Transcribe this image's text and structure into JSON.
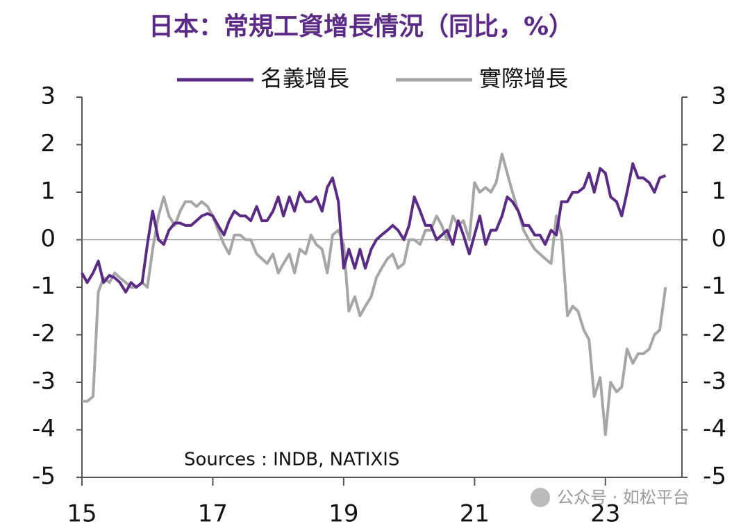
{
  "chart_data": {
    "type": "line",
    "title": "日本：常規工資增長情況（同比，%）",
    "annotation": "Sources : INDB, NATIXIS",
    "watermark": "公众号 · 如松平台",
    "legend": "top",
    "grid": false,
    "x": [
      15.0,
      15.08,
      15.17,
      15.25,
      15.33,
      15.42,
      15.5,
      15.58,
      15.67,
      15.75,
      15.83,
      15.92,
      16.0,
      16.08,
      16.17,
      16.25,
      16.33,
      16.42,
      16.5,
      16.58,
      16.67,
      16.75,
      16.83,
      16.92,
      17.0,
      17.08,
      17.17,
      17.25,
      17.33,
      17.42,
      17.5,
      17.58,
      17.67,
      17.75,
      17.83,
      17.92,
      18.0,
      18.08,
      18.17,
      18.25,
      18.33,
      18.42,
      18.5,
      18.58,
      18.67,
      18.75,
      18.83,
      18.92,
      19.0,
      19.08,
      19.17,
      19.25,
      19.33,
      19.42,
      19.5,
      19.58,
      19.67,
      19.75,
      19.83,
      19.92,
      20.0,
      20.08,
      20.17,
      20.25,
      20.33,
      20.42,
      20.5,
      20.58,
      20.67,
      20.75,
      20.83,
      20.92,
      21.0,
      21.08,
      21.17,
      21.25,
      21.33,
      21.42,
      21.5,
      21.58,
      21.67,
      21.75,
      21.83,
      21.92,
      22.0,
      22.08,
      22.17,
      22.25,
      22.33,
      22.42,
      22.5,
      22.58,
      22.67,
      22.75,
      22.83,
      22.92,
      23.0,
      23.08,
      23.17,
      23.25,
      23.33,
      23.42,
      23.5,
      23.58,
      23.67,
      23.75,
      23.83,
      23.92
    ],
    "series": [
      {
        "name": "名義增長",
        "color": "#5b2a86",
        "values": [
          -0.7,
          -0.9,
          -0.7,
          -0.45,
          -0.9,
          -0.75,
          -0.8,
          -0.9,
          -1.1,
          -0.9,
          -1.0,
          -0.9,
          -0.1,
          0.6,
          0.0,
          -0.1,
          0.2,
          0.35,
          0.35,
          0.3,
          0.3,
          0.4,
          0.5,
          0.55,
          0.5,
          0.3,
          0.1,
          0.4,
          0.6,
          0.5,
          0.5,
          0.4,
          0.7,
          0.4,
          0.4,
          0.6,
          0.9,
          0.5,
          0.9,
          0.6,
          1.0,
          0.8,
          0.8,
          0.9,
          0.6,
          1.1,
          1.3,
          0.8,
          -0.6,
          -0.2,
          -0.6,
          -0.2,
          -0.6,
          -0.2,
          0.0,
          0.1,
          0.2,
          0.3,
          0.2,
          0.0,
          0.3,
          0.9,
          0.6,
          0.3,
          0.3,
          0.0,
          0.1,
          0.2,
          -0.1,
          0.4,
          0.1,
          -0.3,
          0.1,
          0.5,
          -0.1,
          0.2,
          0.2,
          0.5,
          0.9,
          0.8,
          0.6,
          0.3,
          0.3,
          0.1,
          0.1,
          -0.1,
          0.2,
          0.1,
          0.8,
          0.8,
          1.0,
          1.0,
          1.1,
          1.4,
          1.0,
          1.5,
          1.4,
          0.9,
          0.8,
          0.5,
          1.0,
          1.6,
          1.3,
          1.3,
          1.2,
          1.0,
          1.3,
          1.35
        ]
      },
      {
        "name": "實際增長",
        "color": "#a6a6a6",
        "values": [
          -3.4,
          -3.4,
          -3.3,
          -1.1,
          -0.8,
          -0.9,
          -0.7,
          -0.8,
          -0.9,
          -1.0,
          -1.0,
          -0.9,
          -1.0,
          -0.2,
          0.5,
          0.9,
          0.5,
          0.3,
          0.6,
          0.8,
          0.8,
          0.7,
          0.8,
          0.7,
          0.5,
          0.2,
          -0.1,
          -0.3,
          0.1,
          0.1,
          0.0,
          0.0,
          -0.3,
          -0.4,
          -0.5,
          -0.3,
          -0.7,
          -0.5,
          -0.3,
          -0.7,
          -0.2,
          -0.3,
          0.1,
          -0.1,
          -0.2,
          -0.7,
          0.1,
          0.2,
          -0.1,
          -1.5,
          -1.2,
          -1.6,
          -1.4,
          -1.2,
          -0.8,
          -0.6,
          -0.4,
          -0.3,
          -0.6,
          -0.5,
          0.0,
          0.0,
          -0.1,
          0.2,
          0.2,
          0.5,
          0.3,
          0.0,
          0.5,
          0.3,
          0.4,
          0.0,
          1.2,
          1.0,
          1.1,
          1.0,
          1.2,
          1.8,
          1.4,
          1.0,
          0.6,
          0.2,
          0.0,
          -0.2,
          -0.3,
          -0.4,
          -0.5,
          0.5,
          0.1,
          -1.6,
          -1.4,
          -1.5,
          -1.9,
          -2.1,
          -3.3,
          -2.9,
          -4.1,
          -3.0,
          -3.2,
          -3.1,
          -2.3,
          -2.6,
          -2.4,
          -2.4,
          -2.3,
          -2.0,
          -1.9,
          -1.0
        ]
      }
    ],
    "xlim": [
      15,
      24.17
    ],
    "xticks": [
      15,
      17,
      19,
      21,
      23
    ],
    "ylim": [
      -5,
      3
    ],
    "yticks": [
      3,
      2,
      1,
      0,
      -1,
      -2,
      -3,
      -4,
      -5
    ]
  }
}
